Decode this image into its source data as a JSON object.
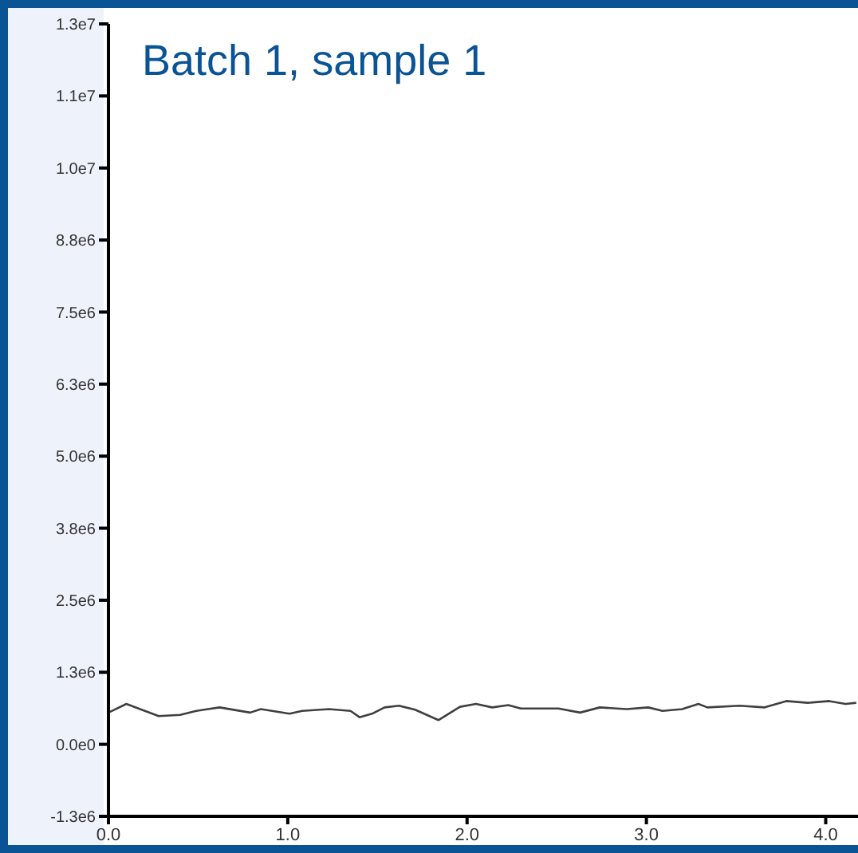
{
  "chart_data": {
    "type": "line",
    "title": "Batch 1, sample 1",
    "x": [
      0,
      0.1,
      0.28,
      0.4,
      0.49,
      0.62,
      0.79,
      0.85,
      1.01,
      1.08,
      1.23,
      1.35,
      1.4,
      1.47,
      1.54,
      1.62,
      1.71,
      1.84,
      1.96,
      2.05,
      2.14,
      2.23,
      2.3,
      2.51,
      2.63,
      2.74,
      2.89,
      3.01,
      3.09,
      3.2,
      3.29,
      3.34,
      3.52,
      3.66,
      3.78,
      3.9,
      4.02,
      4.11,
      4.17
    ],
    "series": [
      {
        "color": "#404040",
        "values": [
          550000,
          700000,
          490000,
          510000,
          580000,
          640000,
          550000,
          610000,
          530000,
          580000,
          610000,
          580000,
          470000,
          530000,
          640000,
          670000,
          600000,
          420000,
          650000,
          700000,
          640000,
          680000,
          620000,
          620000,
          550000,
          640000,
          610000,
          640000,
          580000,
          610000,
          700000,
          640000,
          670000,
          640000,
          750000,
          720000,
          750000,
          700000,
          720000
        ]
      }
    ],
    "xlim": [
      0,
      4.18
    ],
    "xticks": [
      {
        "value": 0,
        "label": "0.0"
      },
      {
        "value": 1,
        "label": "1.0"
      },
      {
        "value": 2,
        "label": "2.0"
      },
      {
        "value": 3,
        "label": "3.0"
      },
      {
        "value": 4,
        "label": "4.0"
      }
    ],
    "ylim": [
      -1250000,
      12500000
    ],
    "yticks": [
      {
        "value": -1250000,
        "label": "-1.3e6"
      },
      {
        "value": 0,
        "label": "0.0e0"
      },
      {
        "value": 1250000,
        "label": "1.3e6"
      },
      {
        "value": 2500000,
        "label": "2.5e6"
      },
      {
        "value": 3750000,
        "label": "3.8e6"
      },
      {
        "value": 5000000,
        "label": "5.0e6"
      },
      {
        "value": 6250000,
        "label": "6.3e6"
      },
      {
        "value": 7500000,
        "label": "7.5e6"
      },
      {
        "value": 8750000,
        "label": "8.8e6"
      },
      {
        "value": 10000000,
        "label": "1.0e7"
      },
      {
        "value": 11250000,
        "label": "1.1e7"
      },
      {
        "value": 12500000,
        "label": "1.3e7"
      }
    ],
    "grid": false,
    "legend": false,
    "marker": "none",
    "line_style": "solid"
  }
}
